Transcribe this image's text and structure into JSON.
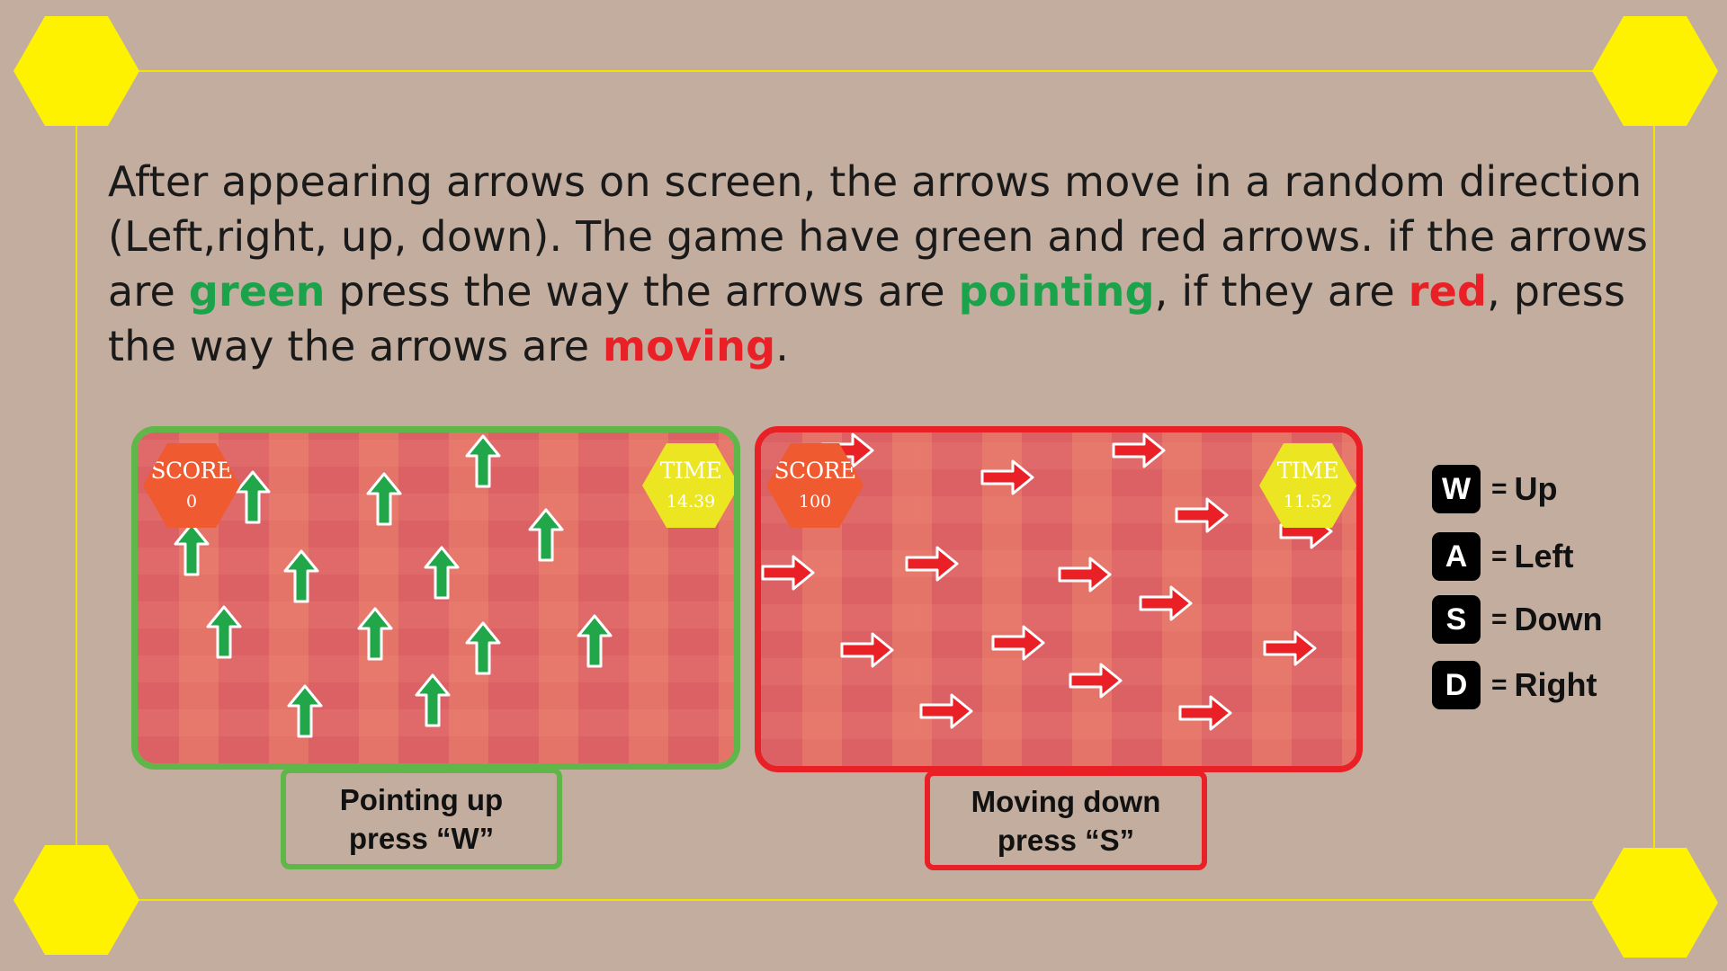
{
  "instructions": {
    "part1": "After appearing arrows on screen, the arrows move in a random direction (Left,right, up, down). The game have green and red arrows. if the arrows are ",
    "green_word": "green",
    "part2": " press the way the arrows are ",
    "pointing_word": "pointing",
    "part3": ", if they are ",
    "red_word": "red",
    "part4": ", press the way the arrows are ",
    "moving_word": "moving",
    "part5": "."
  },
  "example_green": {
    "score_label": "SCORE",
    "score_value": "0",
    "time_label": "TIME",
    "time_value": "14.39",
    "arrow_color": "#21a64a",
    "arrow_direction": "up",
    "caption_line1": "Pointing up",
    "caption_line2": "press “W”"
  },
  "example_red": {
    "score_label": "SCORE",
    "score_value": "100",
    "time_label": "TIME",
    "time_value": "11.52",
    "arrow_color": "#ea2027",
    "arrow_direction": "right",
    "caption_line1": "Moving down",
    "caption_line2": "press “S”"
  },
  "legend": [
    {
      "key": "W",
      "eq": "=",
      "action": "Up"
    },
    {
      "key": "A",
      "eq": "=",
      "action": "Left"
    },
    {
      "key": "S",
      "eq": "=",
      "action": "Down"
    },
    {
      "key": "D",
      "eq": "=",
      "action": "Right"
    }
  ],
  "colors": {
    "background": "#c2ad9e",
    "frame": "#fff200",
    "green": "#5fb749",
    "red": "#ea2027"
  }
}
